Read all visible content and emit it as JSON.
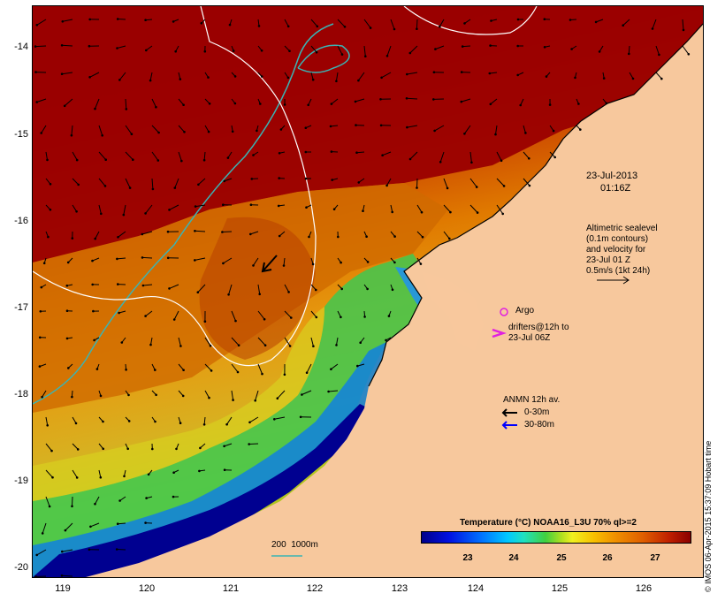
{
  "map": {
    "y_ticks": [
      "-14",
      "-15",
      "-16",
      "-17",
      "-18",
      "-19",
      "-20"
    ],
    "x_ticks": [
      "119",
      "120",
      "121",
      "122",
      "123",
      "124",
      "125",
      "126"
    ],
    "lon_range": [
      118.65,
      126.75
    ],
    "lat_range": [
      -20.05,
      -13.65
    ]
  },
  "annotations": {
    "date": "23-Jul-2013",
    "time": "01:16Z",
    "altimetric": [
      "Altimetric sealevel",
      "(0.1m contours)",
      "and velocity for",
      "23-Jul 01 Z",
      "0.5m/s (1kt 24h)"
    ],
    "argo": "Argo",
    "drifters": [
      "drifters@12h to",
      "23-Jul 06Z"
    ],
    "anmn_title": "ANMN 12h av.",
    "anmn_0_30": "0-30m",
    "anmn_30_80": "30-80m",
    "depth_legend": "200  1000m",
    "credit": "© IMOS 06-Apr-2015 15:37:09 Hobart time"
  },
  "colorbar": {
    "title": "Temperature (°C) NOAA16_L3U 70% ql>=2",
    "labels": [
      "23",
      "24",
      "25",
      "26",
      "27"
    ]
  },
  "colors": {
    "land": "#f7c89d",
    "warm": "#a00000",
    "contour_200m": "#3ab4b4",
    "contour_sealevel": "#ffffff",
    "argo_marker": "#e020e0",
    "anmn_30_80": "#0000ff"
  }
}
